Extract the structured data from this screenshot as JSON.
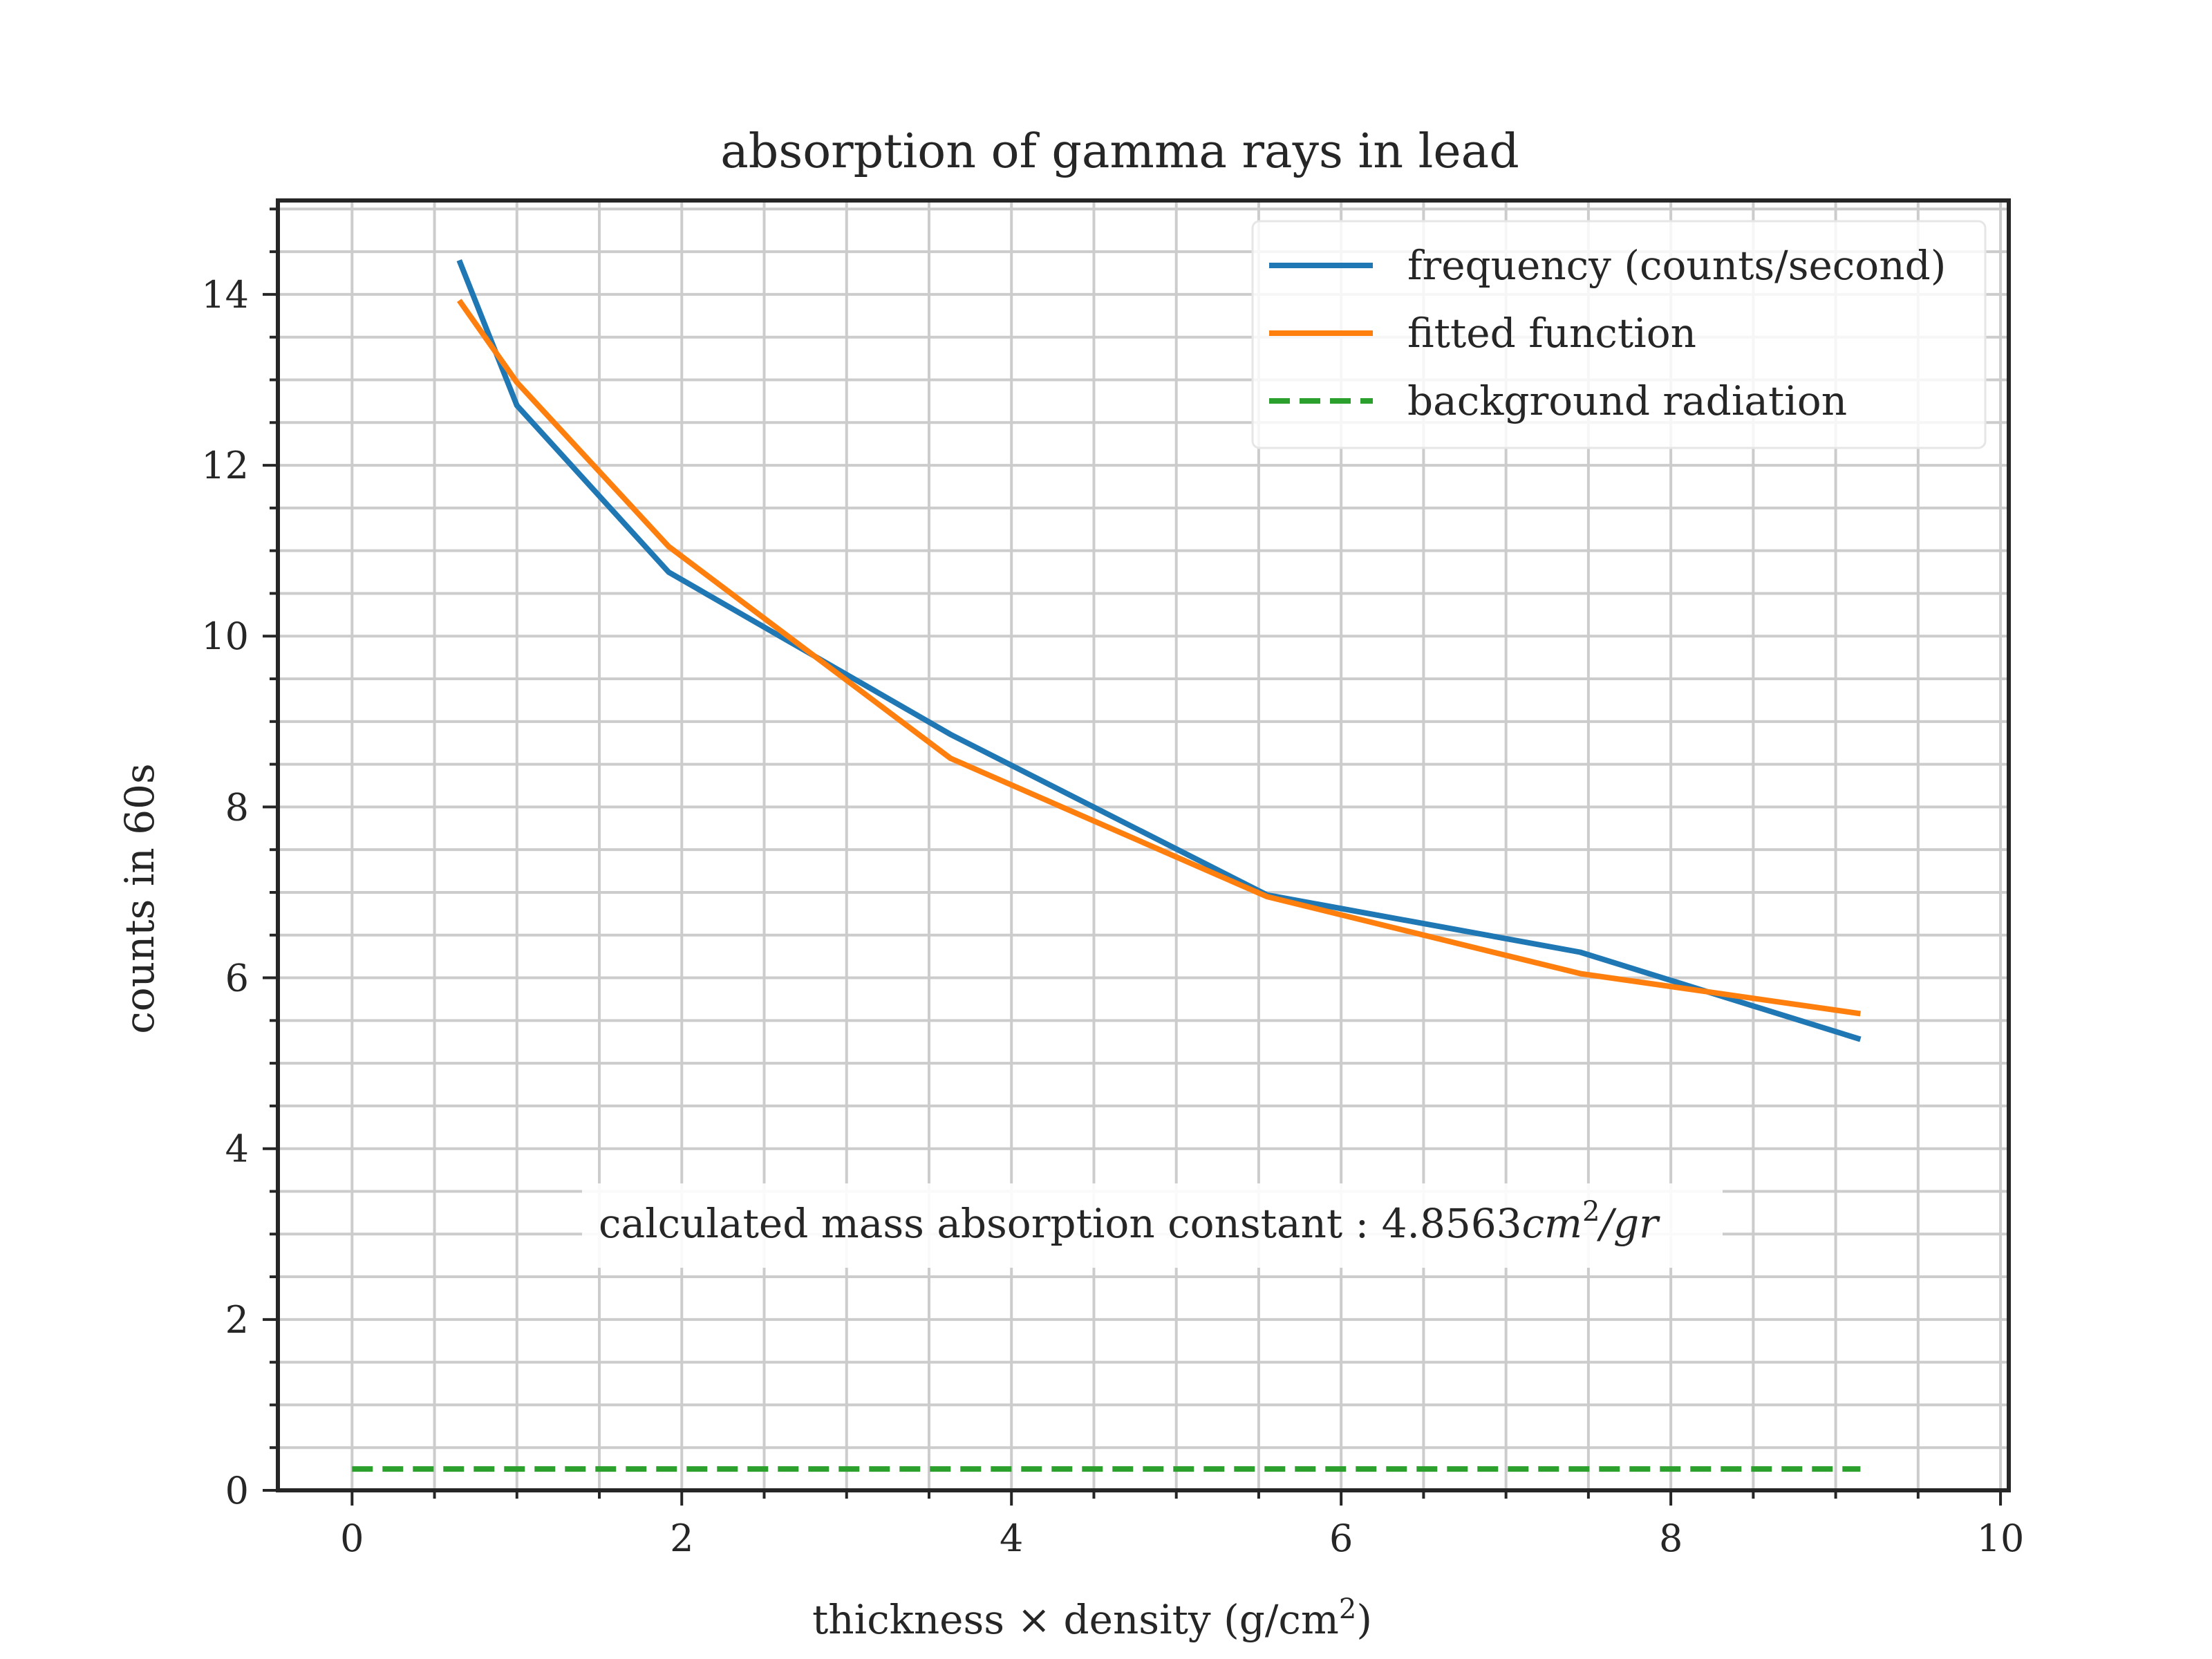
{
  "chart_data": {
    "type": "line",
    "title": "absorption of gamma rays in lead",
    "xlabel": "thickness × density (g/cm",
    "xlabel_sup": "2",
    "xlabel_end": ")",
    "ylabel": "counts in 60s",
    "xlim": [
      -0.45,
      10.05
    ],
    "ylim": [
      0,
      15.1
    ],
    "x_ticks": [
      0,
      2,
      4,
      6,
      8,
      10
    ],
    "y_ticks": [
      0,
      2,
      4,
      6,
      8,
      10,
      12,
      14
    ],
    "x_minor_step": 0.5,
    "y_minor_step": 0.5,
    "grid": true,
    "legend_position": "top-right",
    "series": [
      {
        "name": "frequency (counts/second)",
        "color": "#1f77b4",
        "style": "solid",
        "x": [
          0.65,
          1.0,
          1.92,
          3.63,
          5.55,
          7.45,
          9.15
        ],
        "y": [
          14.4,
          12.7,
          10.75,
          8.85,
          6.97,
          6.3,
          5.28
        ]
      },
      {
        "name": "fitted function",
        "color": "#ff7f0e",
        "style": "solid",
        "x": [
          0.65,
          1.0,
          1.92,
          3.63,
          5.55,
          7.45,
          9.15
        ],
        "y": [
          13.93,
          12.97,
          11.05,
          8.57,
          6.95,
          6.05,
          5.58
        ]
      },
      {
        "name": "background radiation",
        "color": "#2ca02c",
        "style": "dashed",
        "x": [
          0.0,
          9.15
        ],
        "y": [
          0.25,
          0.25
        ]
      }
    ],
    "annotation": {
      "prefix": "calculated mass absorption constant : 4.8563",
      "unit_base": "cm",
      "unit_sup": "2",
      "unit_end": "/gr"
    }
  }
}
